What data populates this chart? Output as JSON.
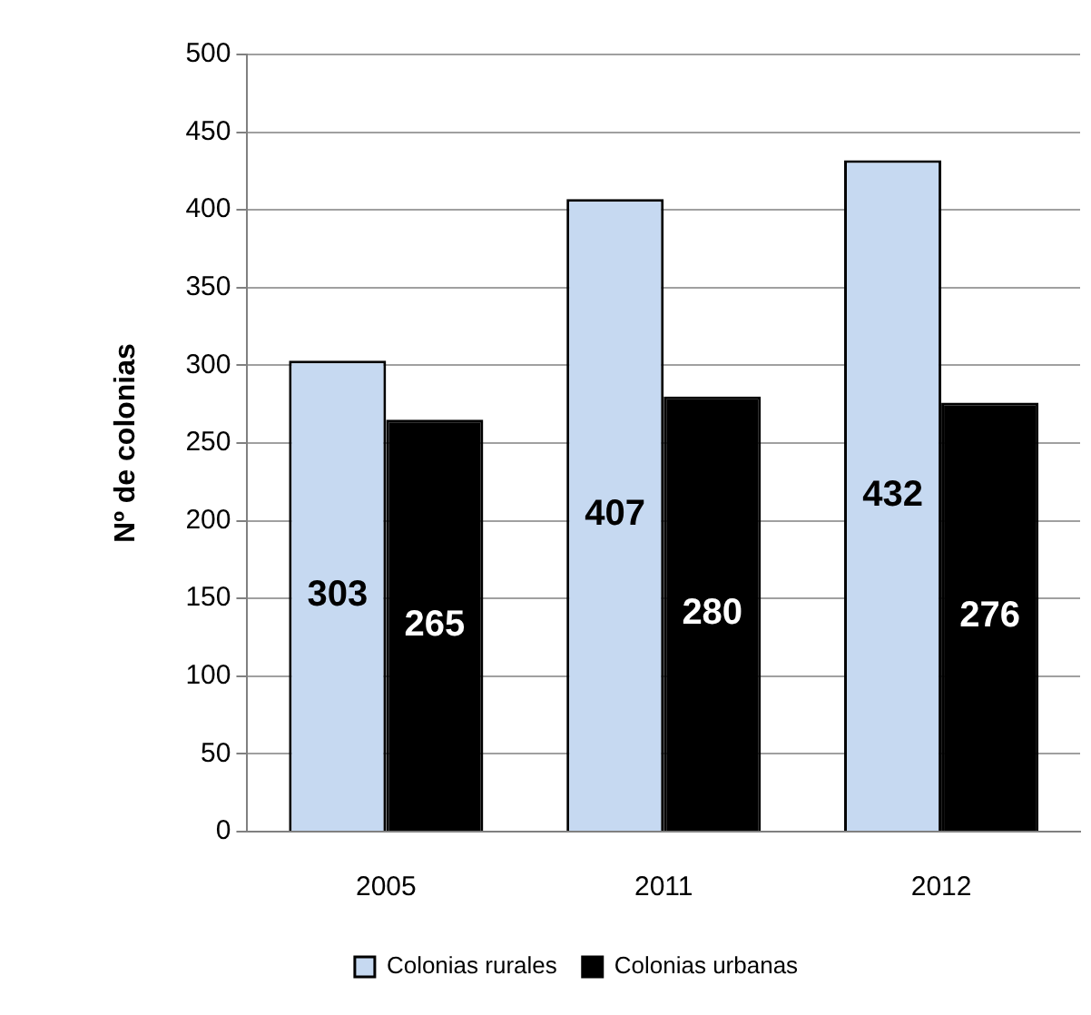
{
  "chart_data": {
    "type": "bar",
    "ylabel": "Nº de colonias",
    "categories": [
      "2005",
      "2011",
      "2012"
    ],
    "series": [
      {
        "name": "Colonias rurales",
        "color": "#c6d9f1",
        "values": [
          303,
          407,
          432
        ]
      },
      {
        "name": "Colonias urbanas",
        "color": "#000000",
        "values": [
          265,
          280,
          276
        ]
      }
    ],
    "ylim": [
      0,
      500
    ],
    "yticks": [
      0,
      50,
      100,
      150,
      200,
      250,
      300,
      350,
      400,
      450,
      500
    ],
    "grid": "y",
    "legend": "bottom",
    "data_labels": true
  }
}
